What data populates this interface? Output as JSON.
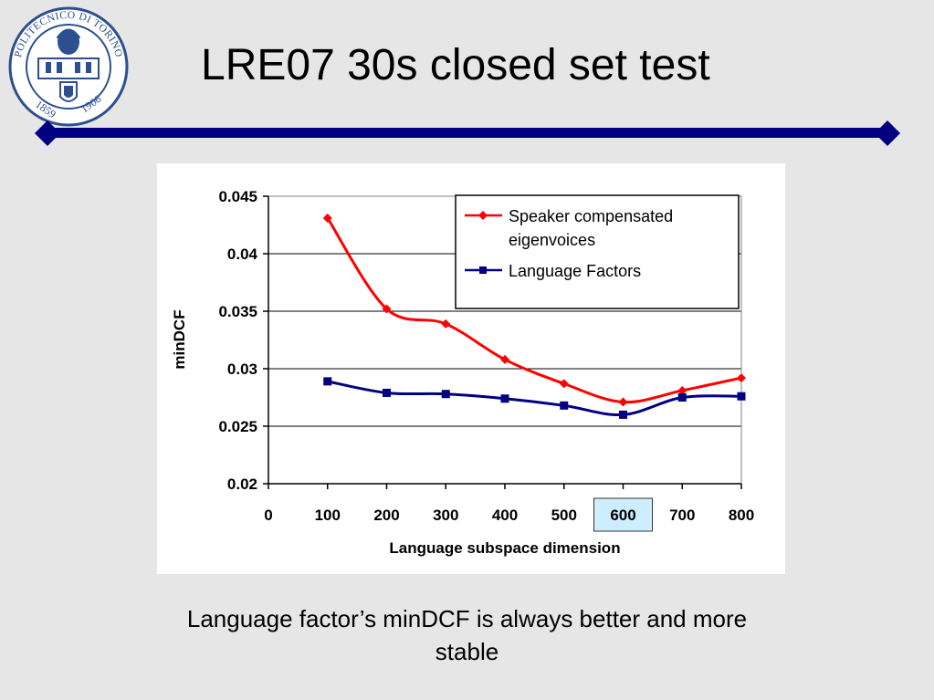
{
  "slide": {
    "title": "LRE07 30s closed set test",
    "caption_line1": "Language factor’s minDCF is always better and more",
    "caption_line2": "stable"
  },
  "logo": {
    "icon": "university-seal-icon",
    "text": "POLITECNICO DI TORINO",
    "year_left": "1859",
    "year_right": "1906"
  },
  "colors": {
    "divider": "#000080",
    "series_red": "#ff0000",
    "series_blue": "#000080",
    "highlight_fill": "#cceeff"
  },
  "chart_data": {
    "type": "line",
    "title": "",
    "xlabel": "Language subspace dimension",
    "ylabel": "minDCF",
    "xlim": [
      0,
      800
    ],
    "ylim": [
      0.02,
      0.045
    ],
    "x_ticks": [
      0,
      100,
      200,
      300,
      400,
      500,
      600,
      700,
      800
    ],
    "y_ticks": [
      0.02,
      0.025,
      0.03,
      0.035,
      0.04,
      0.045
    ],
    "y_tick_labels": [
      "0.02",
      "0.025",
      "0.03",
      "0.035",
      "0.04",
      "0.045"
    ],
    "highlighted_x_tick": 600,
    "grid": "horizontal",
    "legend_position": "top-right",
    "series": [
      {
        "name_line1": "Speaker compensated",
        "name_line2": "eigenvoices",
        "marker": "diamond",
        "color": "#ff0000",
        "x": [
          100,
          200,
          300,
          400,
          500,
          600,
          700,
          800
        ],
        "y": [
          0.0431,
          0.0352,
          0.0339,
          0.0308,
          0.0287,
          0.0271,
          0.0281,
          0.0292
        ]
      },
      {
        "name": "Language Factors",
        "marker": "square",
        "color": "#000080",
        "x": [
          100,
          200,
          300,
          400,
          500,
          600,
          700,
          800
        ],
        "y": [
          0.0289,
          0.0279,
          0.0278,
          0.0274,
          0.0268,
          0.026,
          0.0275,
          0.0276
        ]
      }
    ]
  }
}
